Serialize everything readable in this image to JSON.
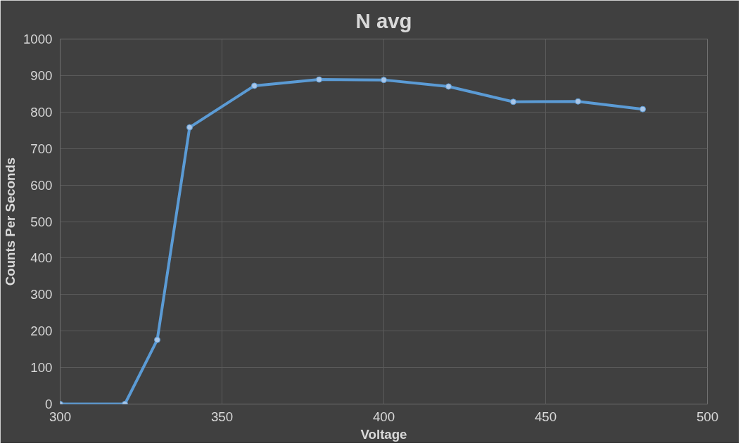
{
  "chart_data": {
    "type": "line",
    "title": "N avg",
    "xlabel": "Voltage",
    "ylabel": "Counts Per Seconds",
    "x": [
      300,
      320,
      330,
      340,
      360,
      380,
      400,
      420,
      440,
      460,
      480
    ],
    "series": [
      {
        "color": "#5b9bd5",
        "values": [
          0,
          0,
          176,
          758,
          872,
          889,
          888,
          870,
          828,
          829,
          808
        ]
      }
    ],
    "xlim": [
      300,
      500
    ],
    "xticks": [
      300,
      350,
      400,
      450,
      500
    ],
    "ylim": [
      0,
      1000
    ],
    "yticks": [
      0,
      100,
      200,
      300,
      400,
      500,
      600,
      700,
      800,
      900,
      1000
    ],
    "grid": true,
    "marker": "circle",
    "line_style": "solid"
  }
}
